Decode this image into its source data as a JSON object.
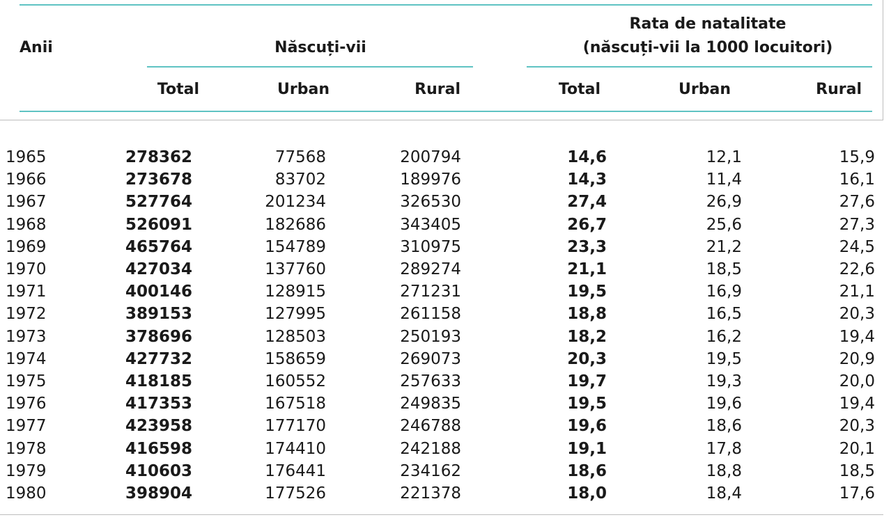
{
  "header": {
    "years_label": "Anii",
    "births_group": "Născuți-vii",
    "rate_group_line1": "Rata de natalitate",
    "rate_group_line2": "(născuți-vii la 1000 locuitori)",
    "total": "Total",
    "urban": "Urban",
    "rural": "Rural"
  },
  "colors": {
    "rule": "#5fc3c3",
    "border": "#bdbdbd"
  },
  "rows": [
    {
      "year": "1965",
      "total": "278362",
      "urban": "77568",
      "rural": "200794",
      "rate_total": "14,6",
      "rate_urban": "12,1",
      "rate_rural": "15,9"
    },
    {
      "year": "1966",
      "total": "273678",
      "urban": "83702",
      "rural": "189976",
      "rate_total": "14,3",
      "rate_urban": "11,4",
      "rate_rural": "16,1"
    },
    {
      "year": "1967",
      "total": "527764",
      "urban": "201234",
      "rural": "326530",
      "rate_total": "27,4",
      "rate_urban": "26,9",
      "rate_rural": "27,6"
    },
    {
      "year": "1968",
      "total": "526091",
      "urban": "182686",
      "rural": "343405",
      "rate_total": "26,7",
      "rate_urban": "25,6",
      "rate_rural": "27,3"
    },
    {
      "year": "1969",
      "total": "465764",
      "urban": "154789",
      "rural": "310975",
      "rate_total": "23,3",
      "rate_urban": "21,2",
      "rate_rural": "24,5"
    },
    {
      "year": "1970",
      "total": "427034",
      "urban": "137760",
      "rural": "289274",
      "rate_total": "21,1",
      "rate_urban": "18,5",
      "rate_rural": "22,6"
    },
    {
      "year": "1971",
      "total": "400146",
      "urban": "128915",
      "rural": "271231",
      "rate_total": "19,5",
      "rate_urban": "16,9",
      "rate_rural": "21,1"
    },
    {
      "year": "1972",
      "total": "389153",
      "urban": "127995",
      "rural": "261158",
      "rate_total": "18,8",
      "rate_urban": "16,5",
      "rate_rural": "20,3"
    },
    {
      "year": "1973",
      "total": "378696",
      "urban": "128503",
      "rural": "250193",
      "rate_total": "18,2",
      "rate_urban": "16,2",
      "rate_rural": "19,4"
    },
    {
      "year": "1974",
      "total": "427732",
      "urban": "158659",
      "rural": "269073",
      "rate_total": "20,3",
      "rate_urban": "19,5",
      "rate_rural": "20,9"
    },
    {
      "year": "1975",
      "total": "418185",
      "urban": "160552",
      "rural": "257633",
      "rate_total": "19,7",
      "rate_urban": "19,3",
      "rate_rural": "20,0"
    },
    {
      "year": "1976",
      "total": "417353",
      "urban": "167518",
      "rural": "249835",
      "rate_total": "19,5",
      "rate_urban": "19,6",
      "rate_rural": "19,4"
    },
    {
      "year": "1977",
      "total": "423958",
      "urban": "177170",
      "rural": "246788",
      "rate_total": "19,6",
      "rate_urban": "18,6",
      "rate_rural": "20,3"
    },
    {
      "year": "1978",
      "total": "416598",
      "urban": "174410",
      "rural": "242188",
      "rate_total": "19,1",
      "rate_urban": "17,8",
      "rate_rural": "20,1"
    },
    {
      "year": "1979",
      "total": "410603",
      "urban": "176441",
      "rural": "234162",
      "rate_total": "18,6",
      "rate_urban": "18,8",
      "rate_rural": "18,5"
    },
    {
      "year": "1980",
      "total": "398904",
      "urban": "177526",
      "rural": "221378",
      "rate_total": "18,0",
      "rate_urban": "18,4",
      "rate_rural": "17,6"
    }
  ]
}
